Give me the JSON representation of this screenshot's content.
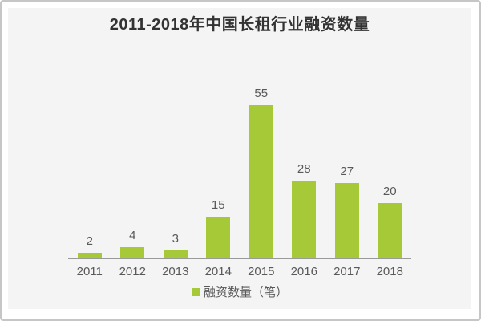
{
  "title": "2011-2018年中国长租行业融资数量",
  "legend": {
    "label": "融资数量（笔）"
  },
  "colors": {
    "bar": "#a6c938",
    "panel_bg": "#f4f4f4",
    "title_text": "#333333",
    "label_text": "#595959",
    "axis_line": "#9a9a9a",
    "frame_border": "#c6c6c6"
  },
  "chart_data": {
    "type": "bar",
    "categories": [
      "2011",
      "2012",
      "2013",
      "2014",
      "2015",
      "2016",
      "2017",
      "2018"
    ],
    "values": [
      2,
      4,
      3,
      15,
      55,
      28,
      27,
      20
    ],
    "title": "2011-2018年中国长租行业融资数量",
    "xlabel": "",
    "ylabel": "",
    "ylim": [
      0,
      60
    ],
    "legend_entries": [
      "融资数量（笔）"
    ],
    "legend_position": "bottom",
    "grid": false,
    "data_labels": true,
    "bar_color": "#a6c938"
  }
}
